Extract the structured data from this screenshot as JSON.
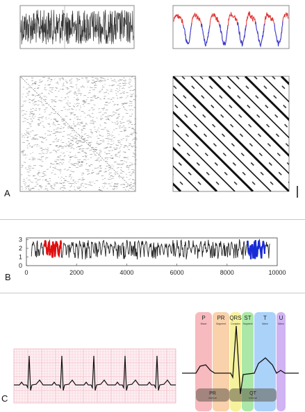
{
  "panels": {
    "a": {
      "letter": "A"
    },
    "b": {
      "letter": "B",
      "y_ticks": [
        "0",
        "1",
        "2",
        "3"
      ],
      "x_ticks": [
        "0",
        "2000",
        "4000",
        "6000",
        "8000",
        "10000"
      ],
      "colors": {
        "trace": "#222222",
        "highlight_start": "#e01010",
        "highlight_end": "#1a2bd6"
      }
    },
    "c": {
      "letter": "C",
      "segments": [
        {
          "label": "P",
          "sub": "Wave",
          "color": "#f4a3a8"
        },
        {
          "label": "PR",
          "sub": "Segment",
          "color": "#f7c28f"
        },
        {
          "label": "QRS",
          "sub": "Complex",
          "color": "#f3ec7c"
        },
        {
          "label": "ST",
          "sub": "Segment",
          "color": "#8fe08a"
        },
        {
          "label": "T",
          "sub": "Wave",
          "color": "#8fc3f5"
        },
        {
          "label": "U",
          "sub": "Wave",
          "color": "#c29af0"
        }
      ],
      "intervals": [
        {
          "label": "PR",
          "sub": "Interval"
        },
        {
          "label": "QT",
          "sub": "Interval"
        }
      ]
    }
  },
  "colors": {
    "series_red": "#e03535",
    "series_blue": "#2d3fd8",
    "grid_pink": "#f2b8c6"
  }
}
